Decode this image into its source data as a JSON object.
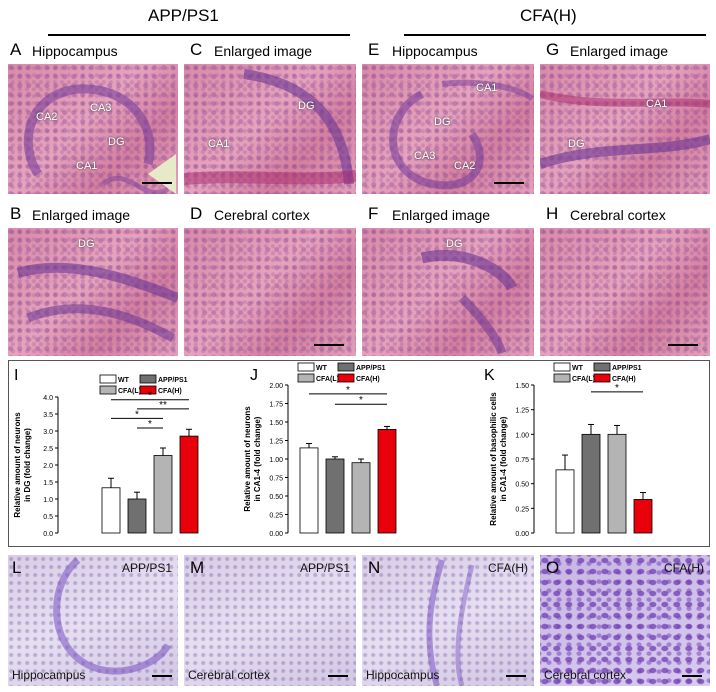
{
  "groups": [
    {
      "title": "APP/PS1"
    },
    {
      "title": "CFA(H)"
    }
  ],
  "he_panels": [
    {
      "letter": "A",
      "title": "Hippocampus",
      "annotations": [
        "CA3",
        "CA2",
        "DG",
        "CA1"
      ]
    },
    {
      "letter": "C",
      "title": "Enlarged image",
      "annotations": [
        "DG",
        "CA1"
      ]
    },
    {
      "letter": "E",
      "title": "Hippocampus",
      "annotations": [
        "CA1",
        "DG",
        "CA3",
        "CA2"
      ]
    },
    {
      "letter": "G",
      "title": "Enlarged image",
      "annotations": [
        "CA1",
        "DG"
      ]
    },
    {
      "letter": "B",
      "title": "Enlarged image",
      "annotations": [
        "DG"
      ]
    },
    {
      "letter": "D",
      "title": "Cerebral cortex",
      "annotations": []
    },
    {
      "letter": "F",
      "title": "Enlarged image",
      "annotations": [
        "DG"
      ]
    },
    {
      "letter": "H",
      "title": "Cerebral cortex",
      "annotations": []
    }
  ],
  "legend": [
    "WT",
    "APP/PS1",
    "CFA(L)",
    "CFA(H)"
  ],
  "colors": {
    "WT": "#ffffff",
    "APP/PS1": "#707070",
    "CFA(L)": "#b4b4b4",
    "CFA(H)": "#e8000b"
  },
  "chart_data": [
    {
      "letter": "I",
      "type": "bar",
      "ylabel": "Relative amount of neurons in DG (fold change)",
      "categories": [
        "WT",
        "APP/PS1",
        "CFA(L)",
        "CFA(H)"
      ],
      "values": [
        1.33,
        1.0,
        2.28,
        2.85
      ],
      "errors": [
        0.28,
        0.2,
        0.22,
        0.2
      ],
      "ylim": [
        0,
        4.0
      ],
      "yticks": [
        "0.0",
        "0.5",
        "1.0",
        "1.5",
        "2.0",
        "2.5",
        "3.0",
        "3.5",
        "4.0"
      ],
      "significance": [
        {
          "from": 0,
          "to": 3,
          "label": "*"
        },
        {
          "from": 1,
          "to": 3,
          "label": "**"
        },
        {
          "from": 0,
          "to": 2,
          "label": "*"
        },
        {
          "from": 1,
          "to": 2,
          "label": "*"
        }
      ]
    },
    {
      "letter": "J",
      "type": "bar",
      "ylabel": "Relative amount of neurons in CA1-4 (fold change)",
      "categories": [
        "WT",
        "APP/PS1",
        "CFA(L)",
        "CFA(H)"
      ],
      "values": [
        1.15,
        1.0,
        0.95,
        1.4
      ],
      "errors": [
        0.06,
        0.03,
        0.05,
        0.04
      ],
      "ylim": [
        0,
        2.0
      ],
      "yticks": [
        "0.00",
        "0.25",
        "0.50",
        "0.75",
        "1.00",
        "1.25",
        "1.50",
        "1.75",
        "2.00"
      ],
      "significance": [
        {
          "from": 0,
          "to": 3,
          "label": "*"
        },
        {
          "from": 1,
          "to": 3,
          "label": "*"
        }
      ]
    },
    {
      "letter": "K",
      "type": "bar",
      "ylabel": "Relative amount of basophilic cells in CA1-4 (fold change)",
      "categories": [
        "WT",
        "APP/PS1",
        "CFA(L)",
        "CFA(H)"
      ],
      "values": [
        0.64,
        1.0,
        1.0,
        0.34
      ],
      "errors": [
        0.15,
        0.1,
        0.09,
        0.07
      ],
      "ylim": [
        0,
        1.5
      ],
      "yticks": [
        "0.00",
        "0.25",
        "0.50",
        "0.75",
        "1.00",
        "1.25",
        "1.50"
      ],
      "significance": [
        {
          "from": 1,
          "to": 3,
          "label": "*"
        }
      ]
    }
  ],
  "nissl_panels": [
    {
      "letter": "L",
      "top_label": "APP/PS1",
      "bottom_label": "Hippocampus"
    },
    {
      "letter": "M",
      "top_label": "APP/PS1",
      "bottom_label": "Cerebral cortex"
    },
    {
      "letter": "N",
      "top_label": "CFA(H)",
      "bottom_label": "Hippocampus"
    },
    {
      "letter": "O",
      "top_label": "CFA(H)",
      "bottom_label": "Cerebral cortex"
    }
  ]
}
